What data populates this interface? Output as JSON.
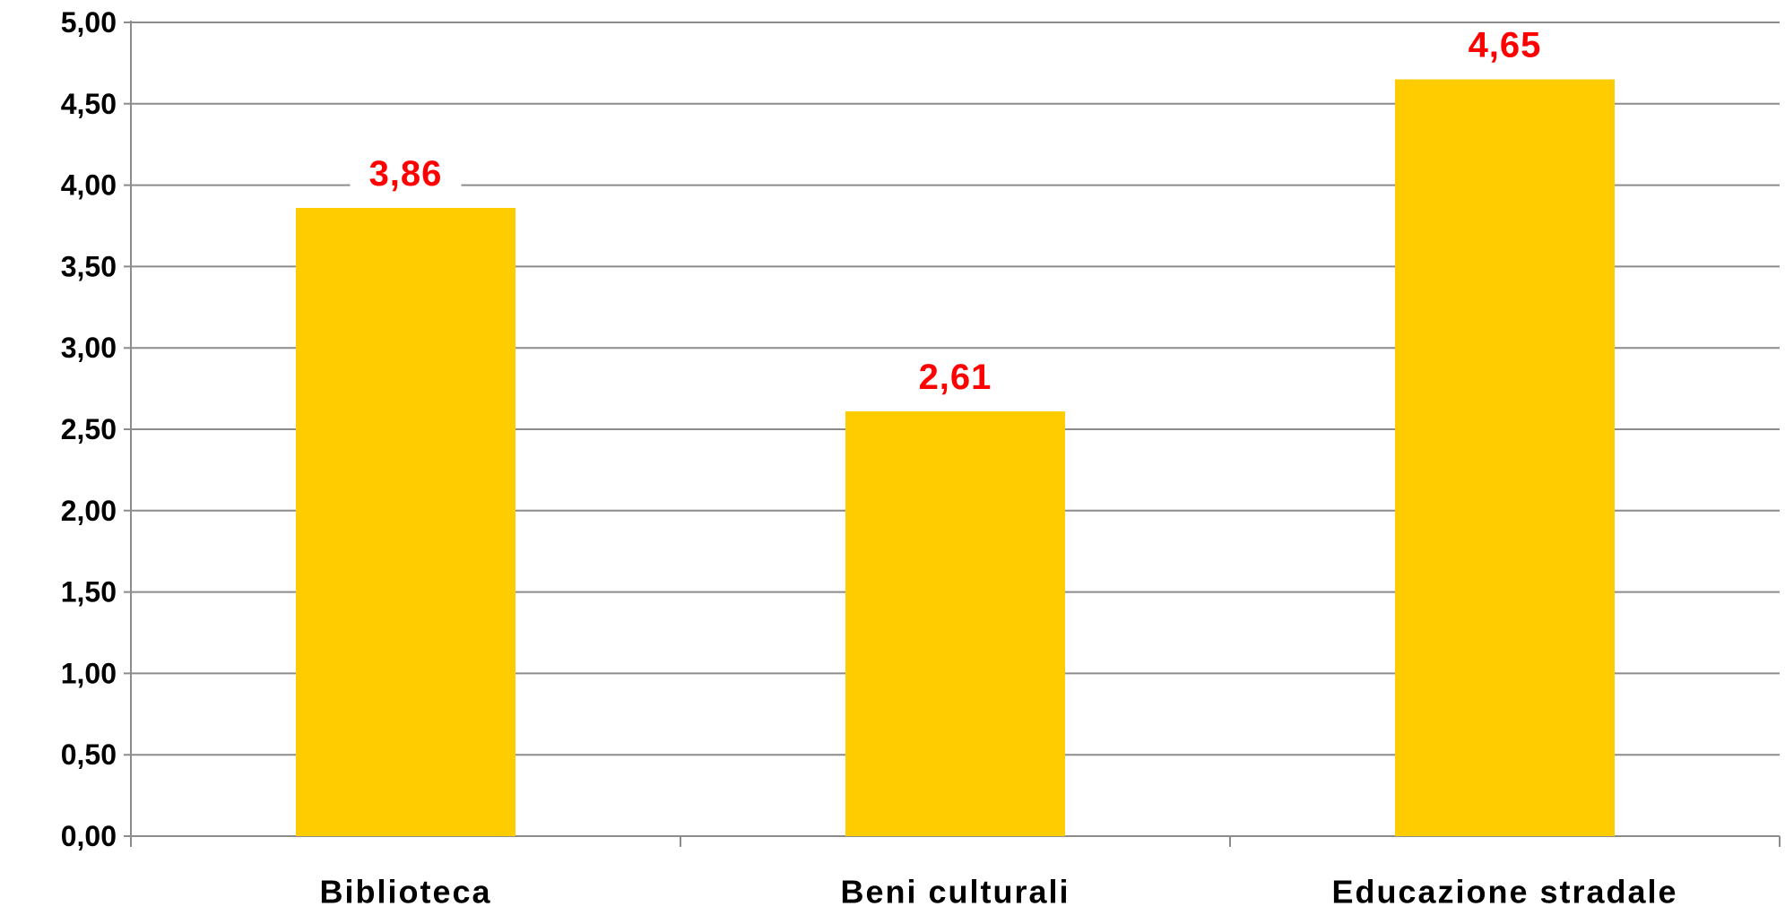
{
  "chart_data": {
    "type": "bar",
    "categories": [
      "Biblioteca",
      "Beni culturali",
      "Educazione stradale"
    ],
    "values": [
      3.86,
      2.61,
      4.65
    ],
    "data_labels": [
      "3,86",
      "2,61",
      "4,65"
    ],
    "title": "",
    "xlabel": "",
    "ylabel": "",
    "ylim": [
      0,
      5
    ],
    "y_ticks": [
      0,
      0.5,
      1,
      1.5,
      2,
      2.5,
      3,
      3.5,
      4,
      4.5,
      5
    ],
    "y_tick_labels": [
      "0,00",
      "0,50",
      "1,00",
      "1,50",
      "2,00",
      "2,50",
      "3,00",
      "3,50",
      "4,00",
      "4,50",
      "5,00"
    ],
    "grid": true,
    "legend": "none",
    "colors": {
      "bar": "#FFCC00",
      "data_label": "#FF0000",
      "grid": "#8C8C8C",
      "axis": "#8C8C8C"
    }
  }
}
